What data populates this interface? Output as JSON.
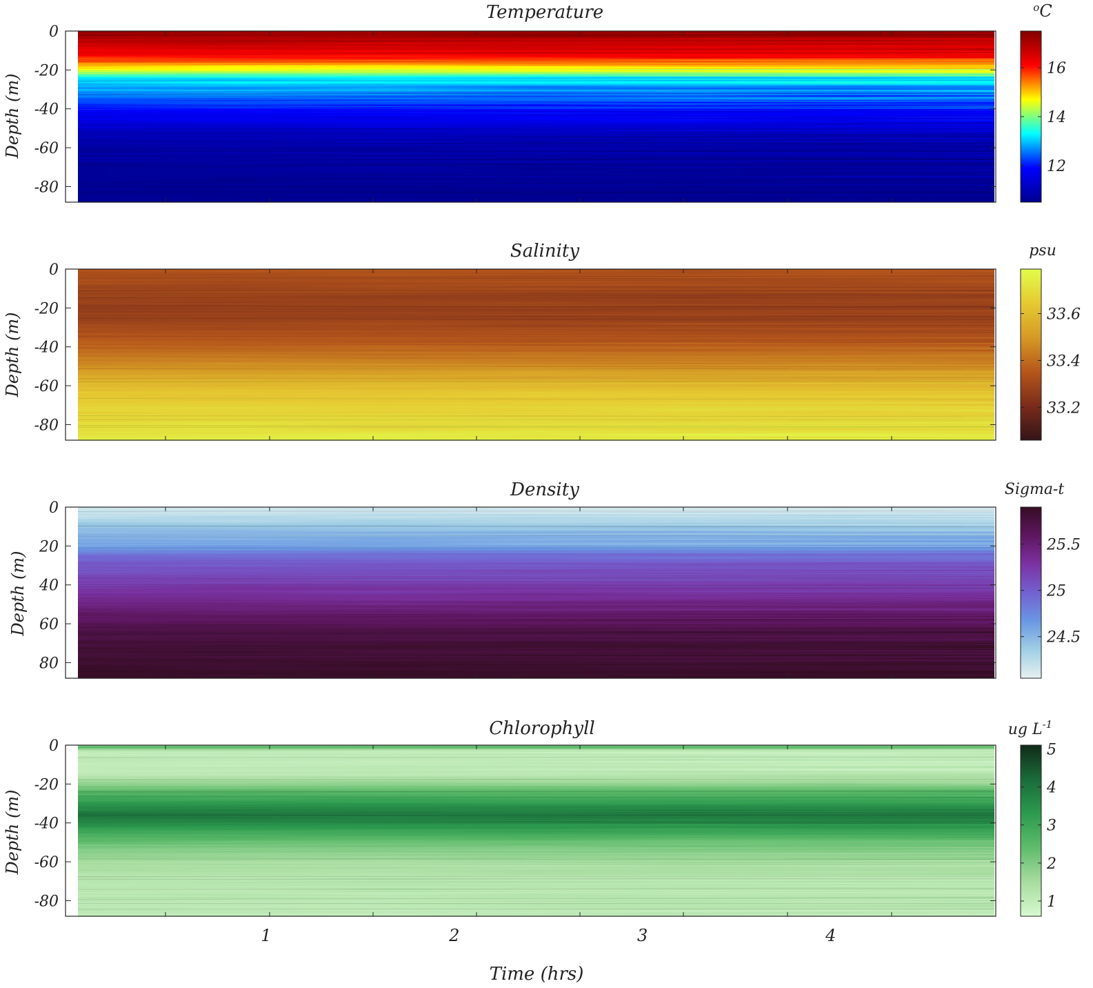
{
  "figure": {
    "xlabel": "Time (hrs)",
    "x_ticks": [
      "1",
      "2",
      "3",
      "4"
    ]
  },
  "chart_data": [
    {
      "type": "heatmap",
      "title": "Temperature",
      "xlabel": "Time (hrs)",
      "ylabel": "Depth (m)",
      "xlim": [
        0,
        5
      ],
      "ylim": [
        -88,
        0
      ],
      "y_ticks": [
        "0",
        "-20",
        "-40",
        "-60",
        "-80"
      ],
      "y_tick_values": [
        0,
        -20,
        -40,
        -60,
        -80
      ],
      "colorbar": {
        "label": "oC",
        "label_main": "C",
        "label_sup": "o",
        "ticks": [
          "16",
          "14",
          "12"
        ],
        "tick_values": [
          16,
          14,
          12
        ],
        "range": [
          10.5,
          17.5
        ],
        "colormap": "jet",
        "stops": [
          "#00008f",
          "#0000ff",
          "#00ffff",
          "#ffff00",
          "#ff0000",
          "#800000"
        ]
      },
      "profile": {
        "depth": [
          0,
          -4,
          -10,
          -15,
          -18,
          -21,
          -24,
          -30,
          -38,
          -46,
          -52,
          -60,
          -70,
          -88
        ],
        "value": [
          17.3,
          17.0,
          16.4,
          15.8,
          15.0,
          14.3,
          13.2,
          12.8,
          12.1,
          11.6,
          11.1,
          10.8,
          10.6,
          10.5
        ]
      }
    },
    {
      "type": "heatmap",
      "title": "Salinity",
      "xlabel": "Time (hrs)",
      "ylabel": "Depth (m)",
      "xlim": [
        0,
        5
      ],
      "ylim": [
        -88,
        0
      ],
      "y_ticks": [
        "0",
        "-20",
        "-40",
        "-60",
        "-80"
      ],
      "y_tick_values": [
        0,
        -20,
        -40,
        -60,
        -80
      ],
      "colorbar": {
        "label": "psu",
        "label_main": "psu",
        "label_sup": "",
        "ticks": [
          "33.6",
          "33.4",
          "33.2"
        ],
        "tick_values": [
          33.6,
          33.4,
          33.2
        ],
        "range": [
          33.06,
          33.79
        ],
        "colormap": "solar",
        "stops": [
          "#331418",
          "#7a2b1b",
          "#b5561b",
          "#d59a25",
          "#e6c932",
          "#e1fd4b"
        ]
      },
      "profile": {
        "depth": [
          0,
          -10,
          -20,
          -25,
          -35,
          -45,
          -52,
          -58,
          -64,
          -72,
          -82,
          -88
        ],
        "value": [
          33.34,
          33.3,
          33.27,
          33.28,
          33.34,
          33.42,
          33.5,
          33.58,
          33.64,
          33.67,
          33.7,
          33.74
        ]
      }
    },
    {
      "type": "heatmap",
      "title": "Density",
      "xlabel": "Time (hrs)",
      "ylabel": "Depth (m)",
      "xlim": [
        0,
        5
      ],
      "ylim": [
        88,
        0
      ],
      "y_ticks": [
        "0",
        "20",
        "40",
        "60",
        "80"
      ],
      "y_tick_values": [
        0,
        20,
        40,
        60,
        80
      ],
      "colorbar": {
        "label": "Sigma-t",
        "label_main": "Sigma-t",
        "label_sup": "",
        "ticks": [
          "25.5",
          "25",
          "24.5"
        ],
        "tick_values": [
          25.5,
          25,
          24.5
        ],
        "range": [
          24.05,
          25.9
        ],
        "colormap": "dense",
        "stops": [
          "#e6f0f0",
          "#a0cfe5",
          "#6a97e3",
          "#7361d0",
          "#7b32a2",
          "#5e1660",
          "#360d24"
        ]
      },
      "profile": {
        "depth": [
          0,
          5,
          12,
          20,
          26,
          34,
          45,
          55,
          62,
          72,
          88
        ],
        "value": [
          24.15,
          24.25,
          24.45,
          24.6,
          24.95,
          25.1,
          25.3,
          25.55,
          25.7,
          25.8,
          25.88
        ]
      }
    },
    {
      "type": "heatmap",
      "title": "Chlorophyll",
      "xlabel": "Time (hrs)",
      "ylabel": "Depth (m)",
      "xlim": [
        0,
        5
      ],
      "ylim": [
        -88,
        0
      ],
      "y_ticks": [
        "0",
        "-20",
        "-40",
        "-60",
        "-80"
      ],
      "y_tick_values": [
        0,
        -20,
        -40,
        -60,
        -80
      ],
      "colorbar": {
        "label": "ug L-1",
        "label_main": "ug L",
        "label_sup": "-1",
        "ticks": [
          "5",
          "4",
          "3",
          "2",
          "1"
        ],
        "tick_values": [
          5,
          4,
          3,
          2,
          1
        ],
        "range": [
          0.6,
          5.1
        ],
        "colormap": "algae",
        "stops": [
          "#d7f9d0",
          "#a8dca0",
          "#5fbc6c",
          "#2c9a4e",
          "#1a6b3a",
          "#112a18"
        ]
      },
      "profile": {
        "depth": [
          0,
          -1,
          -3,
          -15,
          -20,
          -24,
          -30,
          -36,
          -40,
          -46,
          -52,
          -60,
          -70,
          -88
        ],
        "value": [
          1.8,
          2.6,
          1.0,
          1.1,
          1.8,
          2.5,
          3.3,
          4.0,
          3.6,
          2.8,
          2.1,
          1.5,
          1.2,
          1.1
        ]
      }
    }
  ]
}
